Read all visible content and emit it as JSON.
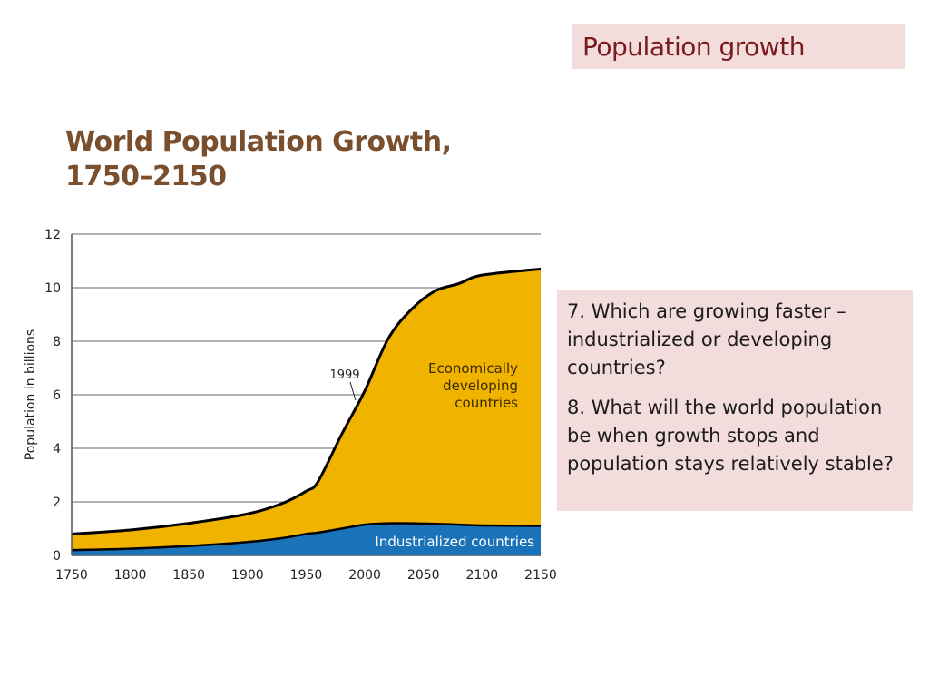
{
  "slide_title": "Population growth",
  "questions": {
    "q7": "7.  Which are growing faster – industrialized or developing countries?",
    "q8": "8. What will the world population be when growth stops and population stays relatively stable?"
  },
  "colors": {
    "developing": "#f0b400",
    "industrialized": "#1a72b8",
    "slide_title": "#7b1a1a",
    "chart_title": "#7a4f2e",
    "box_background": "#f2dcdc"
  },
  "chart_data": {
    "type": "area",
    "stacked": true,
    "title": "World Population Growth,",
    "subtitle": "1750–2150",
    "ylabel": "Population in billions",
    "xlabel": "",
    "xlim": [
      1750,
      2150
    ],
    "ylim": [
      0,
      12
    ],
    "xticks": [
      1750,
      1800,
      1850,
      1900,
      1950,
      2000,
      2050,
      2100,
      2150
    ],
    "yticks": [
      0,
      2,
      4,
      6,
      8,
      10,
      12
    ],
    "grid": true,
    "x": [
      1750,
      1800,
      1850,
      1900,
      1930,
      1950,
      1960,
      1980,
      2000,
      2020,
      2040,
      2060,
      2080,
      2100,
      2150
    ],
    "series": [
      {
        "name": "Industrialized countries",
        "values": [
          0.2,
          0.25,
          0.35,
          0.5,
          0.65,
          0.8,
          0.85,
          1.0,
          1.15,
          1.2,
          1.2,
          1.18,
          1.15,
          1.12,
          1.1
        ]
      },
      {
        "name": "Economically developing countries",
        "values": [
          0.6,
          0.7,
          0.85,
          1.05,
          1.3,
          1.6,
          1.9,
          3.5,
          5.0,
          6.9,
          8.0,
          8.7,
          9.0,
          9.35,
          9.6
        ]
      }
    ],
    "annotations": [
      {
        "text": "1999",
        "x": 1999,
        "y": 6.0
      }
    ],
    "series_labels": {
      "developing": [
        "Economically",
        "developing",
        "countries"
      ],
      "industrialized": "Industrialized countries"
    }
  }
}
